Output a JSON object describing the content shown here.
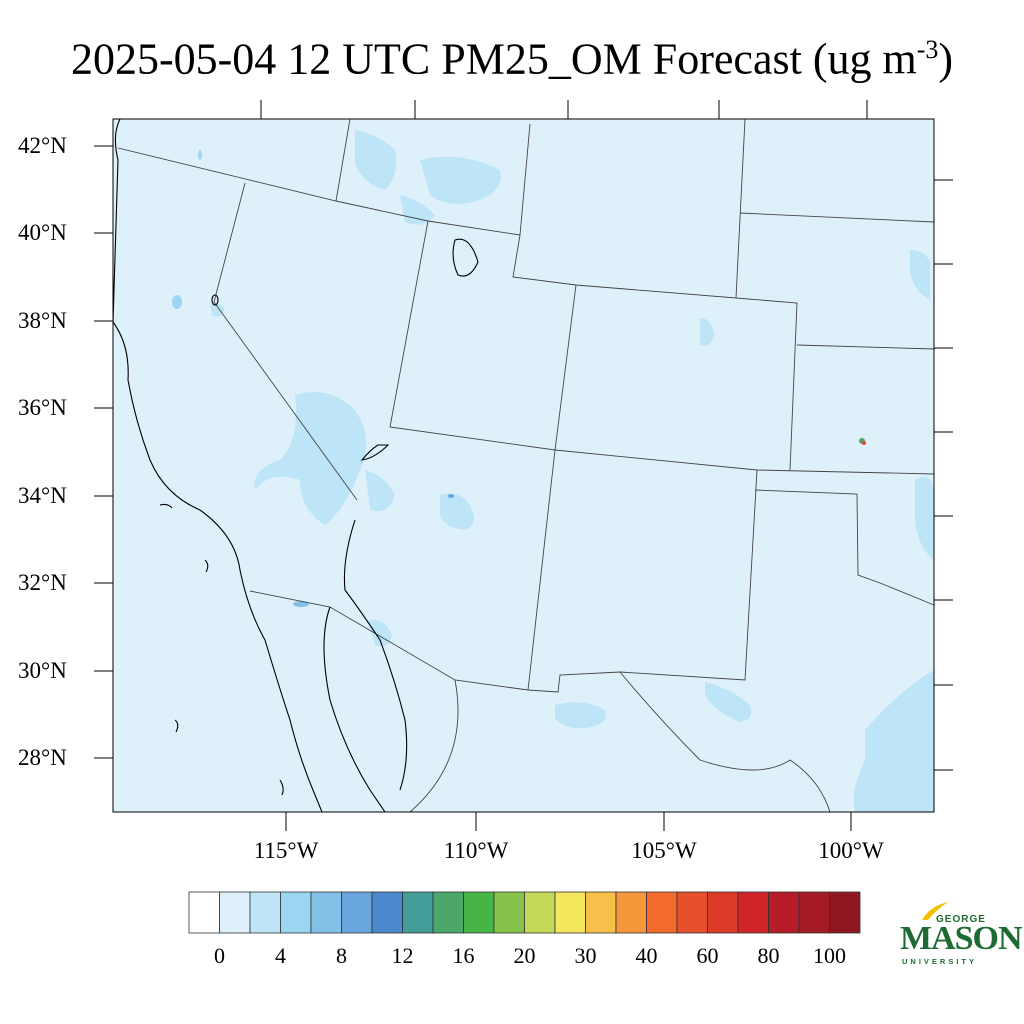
{
  "title": {
    "main": "2025-05-04 12 UTC PM25_OM Forecast (ug m",
    "exponent": "-3",
    "close": ")"
  },
  "map": {
    "latitude_labels": [
      "42°N",
      "40°N",
      "38°N",
      "36°N",
      "34°N",
      "32°N",
      "30°N",
      "28°N"
    ],
    "longitude_labels": [
      "115°W",
      "110°W",
      "105°W",
      "100°W"
    ],
    "colors": {
      "background_field": "#def1fb",
      "coast_line": "#000000",
      "state_line": "#555555"
    }
  },
  "colorbar": {
    "colors": [
      "#ffffff",
      "#def1fb",
      "#bde5f7",
      "#9dd6f3",
      "#82c0e8",
      "#67a5dc",
      "#4b89cc",
      "#459d9a",
      "#4ba76a",
      "#47b545",
      "#85c34a",
      "#c5d959",
      "#f5e75b",
      "#f8c04a",
      "#f5983b",
      "#f26b2c",
      "#e54f2b",
      "#dc3a27",
      "#d0232a",
      "#b61c28",
      "#a41a25",
      "#8f1720"
    ],
    "labels": [
      "0",
      "4",
      "8",
      "12",
      "16",
      "20",
      "30",
      "40",
      "60",
      "80",
      "100"
    ]
  },
  "logo": {
    "top": "GEORGE",
    "main": "MASON",
    "bottom": "UNIVERSITY"
  }
}
